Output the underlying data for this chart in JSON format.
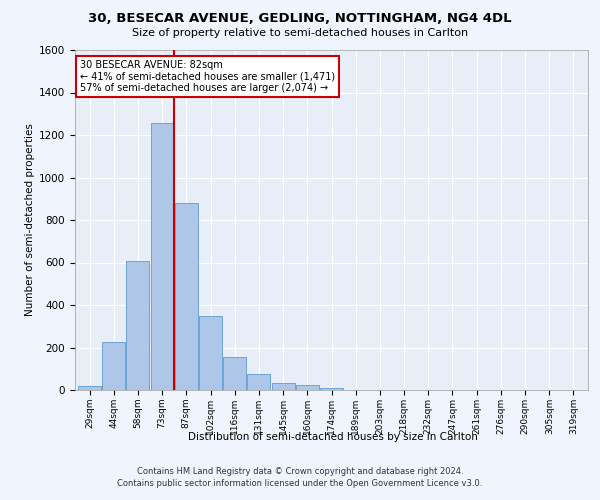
{
  "title_line1": "30, BESECAR AVENUE, GEDLING, NOTTINGHAM, NG4 4DL",
  "title_line2": "Size of property relative to semi-detached houses in Carlton",
  "xlabel": "Distribution of semi-detached houses by size in Carlton",
  "ylabel": "Number of semi-detached properties",
  "footer_line1": "Contains HM Land Registry data © Crown copyright and database right 2024.",
  "footer_line2": "Contains public sector information licensed under the Open Government Licence v3.0.",
  "annotation_title": "30 BESECAR AVENUE: 82sqm",
  "annotation_line1": "← 41% of semi-detached houses are smaller (1,471)",
  "annotation_line2": "57% of semi-detached houses are larger (2,074) →",
  "bar_categories": [
    "29sqm",
    "44sqm",
    "58sqm",
    "73sqm",
    "87sqm",
    "102sqm",
    "116sqm",
    "131sqm",
    "145sqm",
    "160sqm",
    "174sqm",
    "189sqm",
    "203sqm",
    "218sqm",
    "232sqm",
    "247sqm",
    "261sqm",
    "276sqm",
    "290sqm",
    "305sqm",
    "319sqm"
  ],
  "bar_values": [
    20,
    225,
    605,
    1255,
    880,
    350,
    155,
    75,
    35,
    25,
    10,
    0,
    0,
    0,
    0,
    0,
    0,
    0,
    0,
    0,
    0
  ],
  "bar_color": "#aec6e8",
  "bar_edge_color": "#5b9bd5",
  "vline_color": "#cc0000",
  "ylim": [
    0,
    1600
  ],
  "yticks": [
    0,
    200,
    400,
    600,
    800,
    1000,
    1200,
    1400,
    1600
  ],
  "bg_color": "#e8eef8",
  "grid_color": "#ffffff",
  "fig_bg_color": "#f0f4fc",
  "annotation_box_color": "#ffffff",
  "annotation_border_color": "#cc0000"
}
